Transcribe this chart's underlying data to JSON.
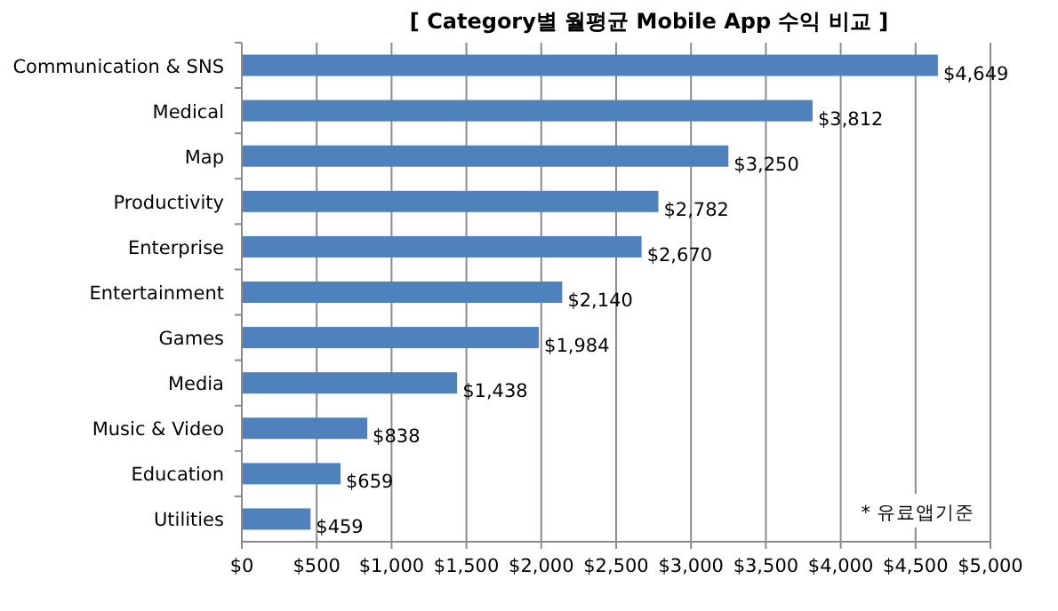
{
  "chart_data": {
    "type": "bar",
    "orientation": "horizontal",
    "title": "[ Category별 월평균 Mobile App 수익 비교 ]",
    "categories": [
      "Communication & SNS",
      "Medical",
      "Map",
      "Productivity",
      "Enterprise",
      "Entertainment",
      "Games",
      "Media",
      "Music & Video",
      "Education",
      "Utilities"
    ],
    "values": [
      4649,
      3812,
      3250,
      2782,
      2670,
      2140,
      1984,
      1438,
      838,
      659,
      459
    ],
    "value_labels": [
      "$4,649",
      "$3,812",
      "$3,250",
      "$2,782",
      "$2,670",
      "$2,140",
      "$1,984",
      "$1,438",
      "$838",
      "$659",
      "$459"
    ],
    "color": "#4f81bd",
    "xlim": [
      0,
      5000
    ],
    "xticks": [
      {
        "value": 0,
        "label": "$0"
      },
      {
        "value": 500,
        "label": "$500"
      },
      {
        "value": 1000,
        "label": "$1,000"
      },
      {
        "value": 1500,
        "label": "$1,500"
      },
      {
        "value": 2000,
        "label": "$2,000"
      },
      {
        "value": 2500,
        "label": "$2,500"
      },
      {
        "value": 3000,
        "label": "$3,000"
      },
      {
        "value": 3500,
        "label": "$3,500"
      },
      {
        "value": 4000,
        "label": "$4,000"
      },
      {
        "value": 4500,
        "label": "$4,500"
      },
      {
        "value": 5000,
        "label": "$5,000"
      }
    ],
    "grid": "x",
    "annotations": [
      "* 유료앱기준"
    ]
  }
}
